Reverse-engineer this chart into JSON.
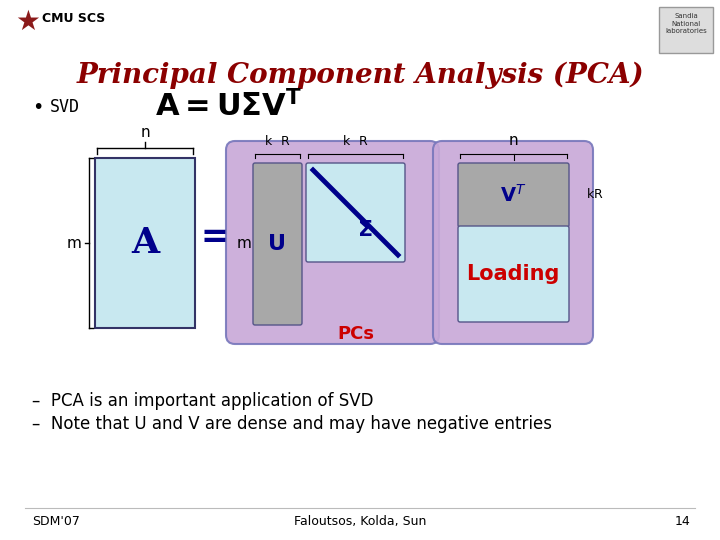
{
  "title": "Principal Component Analysis (PCA)",
  "title_color": "#8B0000",
  "bg_color": "#FFFFFF",
  "matrix_A_color": "#C8E8F0",
  "matrix_A_label": "A",
  "matrix_A_label_color": "#00008B",
  "matrix_U_outer_color": "#C8A8D8",
  "matrix_U_inner_color": "#A8A8A8",
  "matrix_U_label": "U",
  "matrix_U_label_color": "#00008B",
  "matrix_sigma_color": "#C8E8F0",
  "matrix_sigma_label": "Σ",
  "matrix_sigma_label_color": "#00008B",
  "matrix_VT_outer_color": "#C8A8D8",
  "matrix_VT_inner_color": "#A8A8A8",
  "matrix_VT_lower_color": "#C8E8F0",
  "matrix_VT_label": "V",
  "matrix_VT_label_color": "#00008B",
  "loading_label": "Loading",
  "loading_color": "#CC0000",
  "pcs_label": "PCs",
  "pcs_color": "#CC0000",
  "dim_n": "n",
  "dim_m": "m",
  "dim_k": "k",
  "dim_R": "R",
  "equals_color": "#00008B",
  "diagonal_color": "#00008B",
  "border_color": "#6666AA",
  "footnote_left": "SDM'07",
  "footnote_center": "Faloutsos, Kolda, Sun",
  "footnote_right": "14",
  "bullet1": "–  PCA is an important application of SVD",
  "bullet2": "–  Note that U and V are dense and may have negative entries",
  "cmu_text": "CMU SCS"
}
